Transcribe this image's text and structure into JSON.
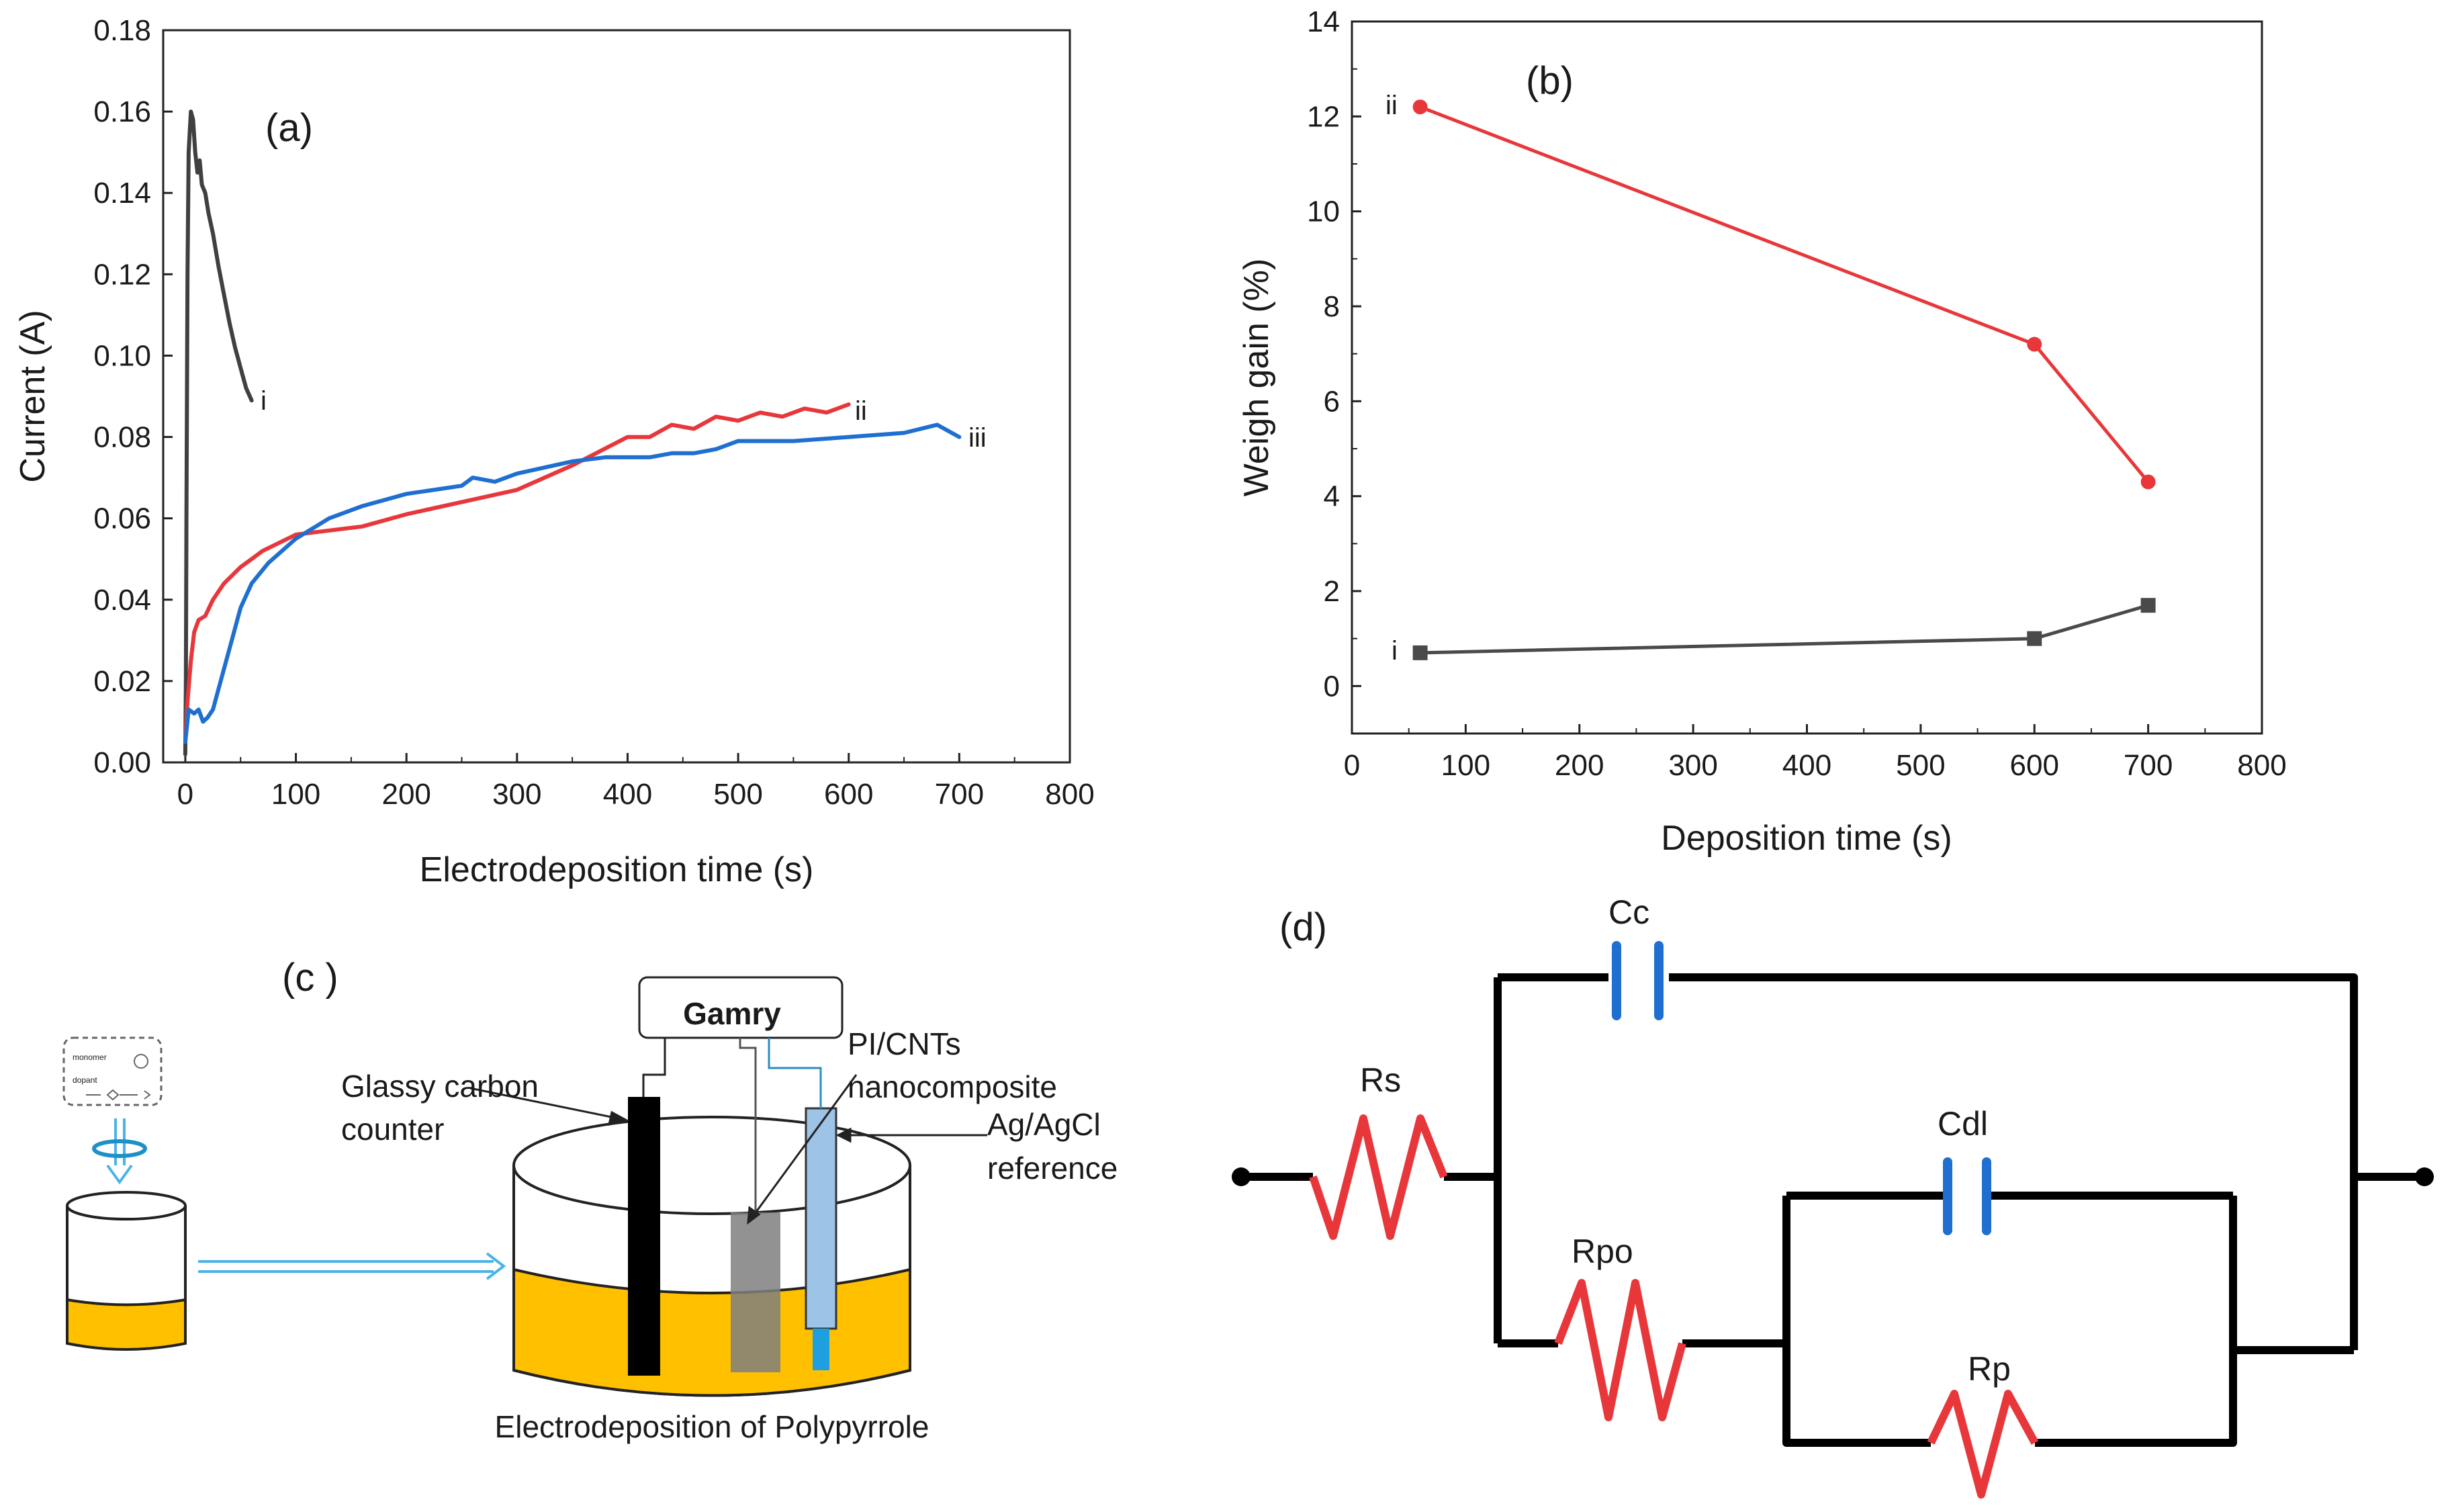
{
  "chart_data": [
    {
      "panel": "(a)",
      "type": "line",
      "title": "",
      "xlabel": "Electrodeposition time (s)",
      "ylabel": "Current (A)",
      "xlim": [
        -20,
        800
      ],
      "ylim": [
        0,
        0.18
      ],
      "x_ticks": [
        0,
        100,
        200,
        300,
        400,
        500,
        600,
        700,
        800
      ],
      "y_ticks": [
        0.0,
        0.02,
        0.04,
        0.06,
        0.08,
        0.1,
        0.12,
        0.14,
        0.16,
        0.18
      ],
      "y_tick_labels": [
        "0.00",
        "0.02",
        "0.04",
        "0.06",
        "0.08",
        "0.10",
        "0.12",
        "0.14",
        "0.16",
        "0.18"
      ],
      "grid": false,
      "series": [
        {
          "name": "i",
          "color": "#404040",
          "x": [
            0,
            0.5,
            1,
            2,
            3,
            5,
            7,
            9,
            11,
            13,
            15,
            18,
            21,
            25,
            30,
            35,
            40,
            45,
            50,
            55,
            60
          ],
          "y": [
            0.002,
            0.02,
            0.06,
            0.12,
            0.15,
            0.16,
            0.158,
            0.15,
            0.145,
            0.148,
            0.142,
            0.14,
            0.135,
            0.13,
            0.122,
            0.115,
            0.108,
            0.102,
            0.097,
            0.092,
            0.089
          ]
        },
        {
          "name": "ii",
          "color": "#e8373b",
          "x": [
            0,
            2,
            5,
            8,
            12,
            18,
            25,
            35,
            50,
            70,
            100,
            130,
            160,
            200,
            250,
            300,
            350,
            400,
            420,
            440,
            460,
            480,
            500,
            520,
            540,
            560,
            580,
            600
          ],
          "y": [
            0.005,
            0.015,
            0.025,
            0.032,
            0.035,
            0.036,
            0.04,
            0.044,
            0.048,
            0.052,
            0.056,
            0.057,
            0.058,
            0.061,
            0.064,
            0.067,
            0.073,
            0.08,
            0.08,
            0.083,
            0.082,
            0.085,
            0.084,
            0.086,
            0.085,
            0.087,
            0.086,
            0.088
          ]
        },
        {
          "name": "iii",
          "color": "#1f6fd1",
          "x": [
            0,
            3,
            8,
            12,
            16,
            20,
            25,
            30,
            40,
            50,
            60,
            75,
            100,
            130,
            160,
            200,
            250,
            260,
            280,
            300,
            350,
            380,
            420,
            440,
            460,
            480,
            500,
            550,
            600,
            650,
            680,
            700
          ],
          "y": [
            0.005,
            0.013,
            0.012,
            0.013,
            0.01,
            0.011,
            0.013,
            0.018,
            0.028,
            0.038,
            0.044,
            0.049,
            0.055,
            0.06,
            0.063,
            0.066,
            0.068,
            0.07,
            0.069,
            0.071,
            0.074,
            0.075,
            0.075,
            0.076,
            0.076,
            0.077,
            0.079,
            0.079,
            0.08,
            0.081,
            0.083,
            0.08
          ]
        }
      ],
      "annotations": [
        {
          "text": "(a)"
        },
        {
          "text": "i"
        },
        {
          "text": "ii"
        },
        {
          "text": "iii"
        }
      ]
    },
    {
      "panel": "(b)",
      "type": "line",
      "title": "",
      "xlabel": "Deposition time (s)",
      "ylabel": "Weigh gain (%)",
      "xlim": [
        0,
        800
      ],
      "ylim": [
        -1,
        14
      ],
      "x_ticks": [
        0,
        100,
        200,
        300,
        400,
        500,
        600,
        700,
        800
      ],
      "y_ticks": [
        0,
        2,
        4,
        6,
        8,
        10,
        12,
        14
      ],
      "grid": false,
      "series": [
        {
          "name": "i",
          "color": "#4a4a4a",
          "marker": "square",
          "x": [
            60,
            600,
            700
          ],
          "y": [
            0.7,
            1.0,
            1.7
          ]
        },
        {
          "name": "ii",
          "color": "#e8373b",
          "marker": "circle",
          "x": [
            60,
            600,
            700
          ],
          "y": [
            12.2,
            7.2,
            4.3
          ]
        }
      ],
      "annotations": [
        {
          "text": "(b)"
        },
        {
          "text": "i"
        },
        {
          "text": "ii"
        }
      ]
    }
  ],
  "panel_c": {
    "label": "(c )",
    "instrument": "Gamry",
    "counter_label_1": "Glassy carbon",
    "counter_label_2": "counter",
    "working_label_1": "PI/CNTs",
    "working_label_2": "nanocomposite",
    "reference_label_1": "Ag/AgCl",
    "reference_label_2": "reference",
    "caption": "Electrodeposition of Polypyrrole",
    "small_box_line_1": "monomer",
    "small_box_line_2": "dopant",
    "colors": {
      "solution": "#ffc000",
      "arrow": "#4bb3e6",
      "reference_electrode": "#9dc3e6",
      "counter_electrode": "#000000",
      "working_electrode": "#7f7f7f"
    }
  },
  "panel_d": {
    "label": "(d)",
    "components": {
      "rs": "Rs",
      "cc": "Cc",
      "cdl": "Cdl",
      "rpo": "Rpo",
      "rp": "Rp"
    },
    "colors": {
      "resistor": "#e8373b",
      "capacitor": "#1f6fd1",
      "wire": "#000000"
    }
  }
}
